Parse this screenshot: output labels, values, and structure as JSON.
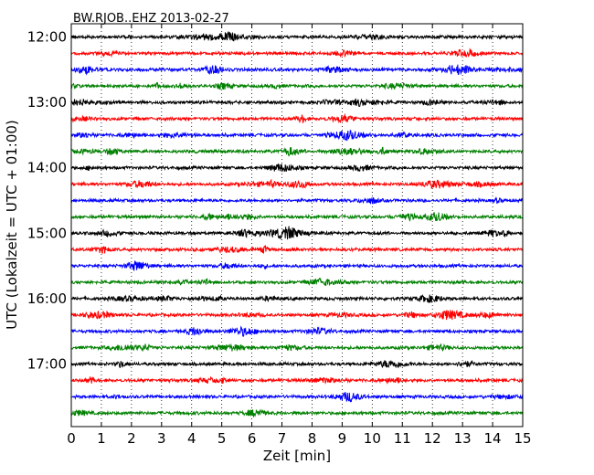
{
  "chart_data": {
    "type": "line",
    "title": "BW.RJOB..EHZ 2013-02-27",
    "xlabel": "Zeit  [min]",
    "ylabel": "UTC (Lokalzeit = UTC + 01:00)",
    "xlim": [
      0,
      15
    ],
    "x_ticks": [
      "0",
      "1",
      "2",
      "3",
      "4",
      "5",
      "6",
      "7",
      "8",
      "9",
      "10",
      "11",
      "12",
      "13",
      "14",
      "15"
    ],
    "y_ticks": [
      {
        "label": "12:00",
        "row": 0
      },
      {
        "label": "13:00",
        "row": 4
      },
      {
        "label": "14:00",
        "row": 8
      },
      {
        "label": "15:00",
        "row": 12
      },
      {
        "label": "16:00",
        "row": 16
      },
      {
        "label": "17:00",
        "row": 20
      }
    ],
    "grid": "vertical-dotted",
    "series": [
      {
        "start": "12:00",
        "color": "#000000"
      },
      {
        "start": "12:15",
        "color": "#ff0000"
      },
      {
        "start": "12:30",
        "color": "#0000ff"
      },
      {
        "start": "12:45",
        "color": "#008000"
      },
      {
        "start": "13:00",
        "color": "#000000"
      },
      {
        "start": "13:15",
        "color": "#ff0000"
      },
      {
        "start": "13:30",
        "color": "#0000ff"
      },
      {
        "start": "13:45",
        "color": "#008000"
      },
      {
        "start": "14:00",
        "color": "#000000"
      },
      {
        "start": "14:15",
        "color": "#ff0000"
      },
      {
        "start": "14:30",
        "color": "#0000ff"
      },
      {
        "start": "14:45",
        "color": "#008000"
      },
      {
        "start": "15:00",
        "color": "#000000"
      },
      {
        "start": "15:15",
        "color": "#ff0000"
      },
      {
        "start": "15:30",
        "color": "#0000ff"
      },
      {
        "start": "15:45",
        "color": "#008000"
      },
      {
        "start": "16:00",
        "color": "#000000"
      },
      {
        "start": "16:15",
        "color": "#ff0000"
      },
      {
        "start": "16:30",
        "color": "#0000ff"
      },
      {
        "start": "16:45",
        "color": "#008000"
      },
      {
        "start": "17:00",
        "color": "#000000"
      },
      {
        "start": "17:15",
        "color": "#ff0000"
      },
      {
        "start": "17:30",
        "color": "#0000ff"
      },
      {
        "start": "17:45",
        "color": "#008000"
      }
    ]
  }
}
